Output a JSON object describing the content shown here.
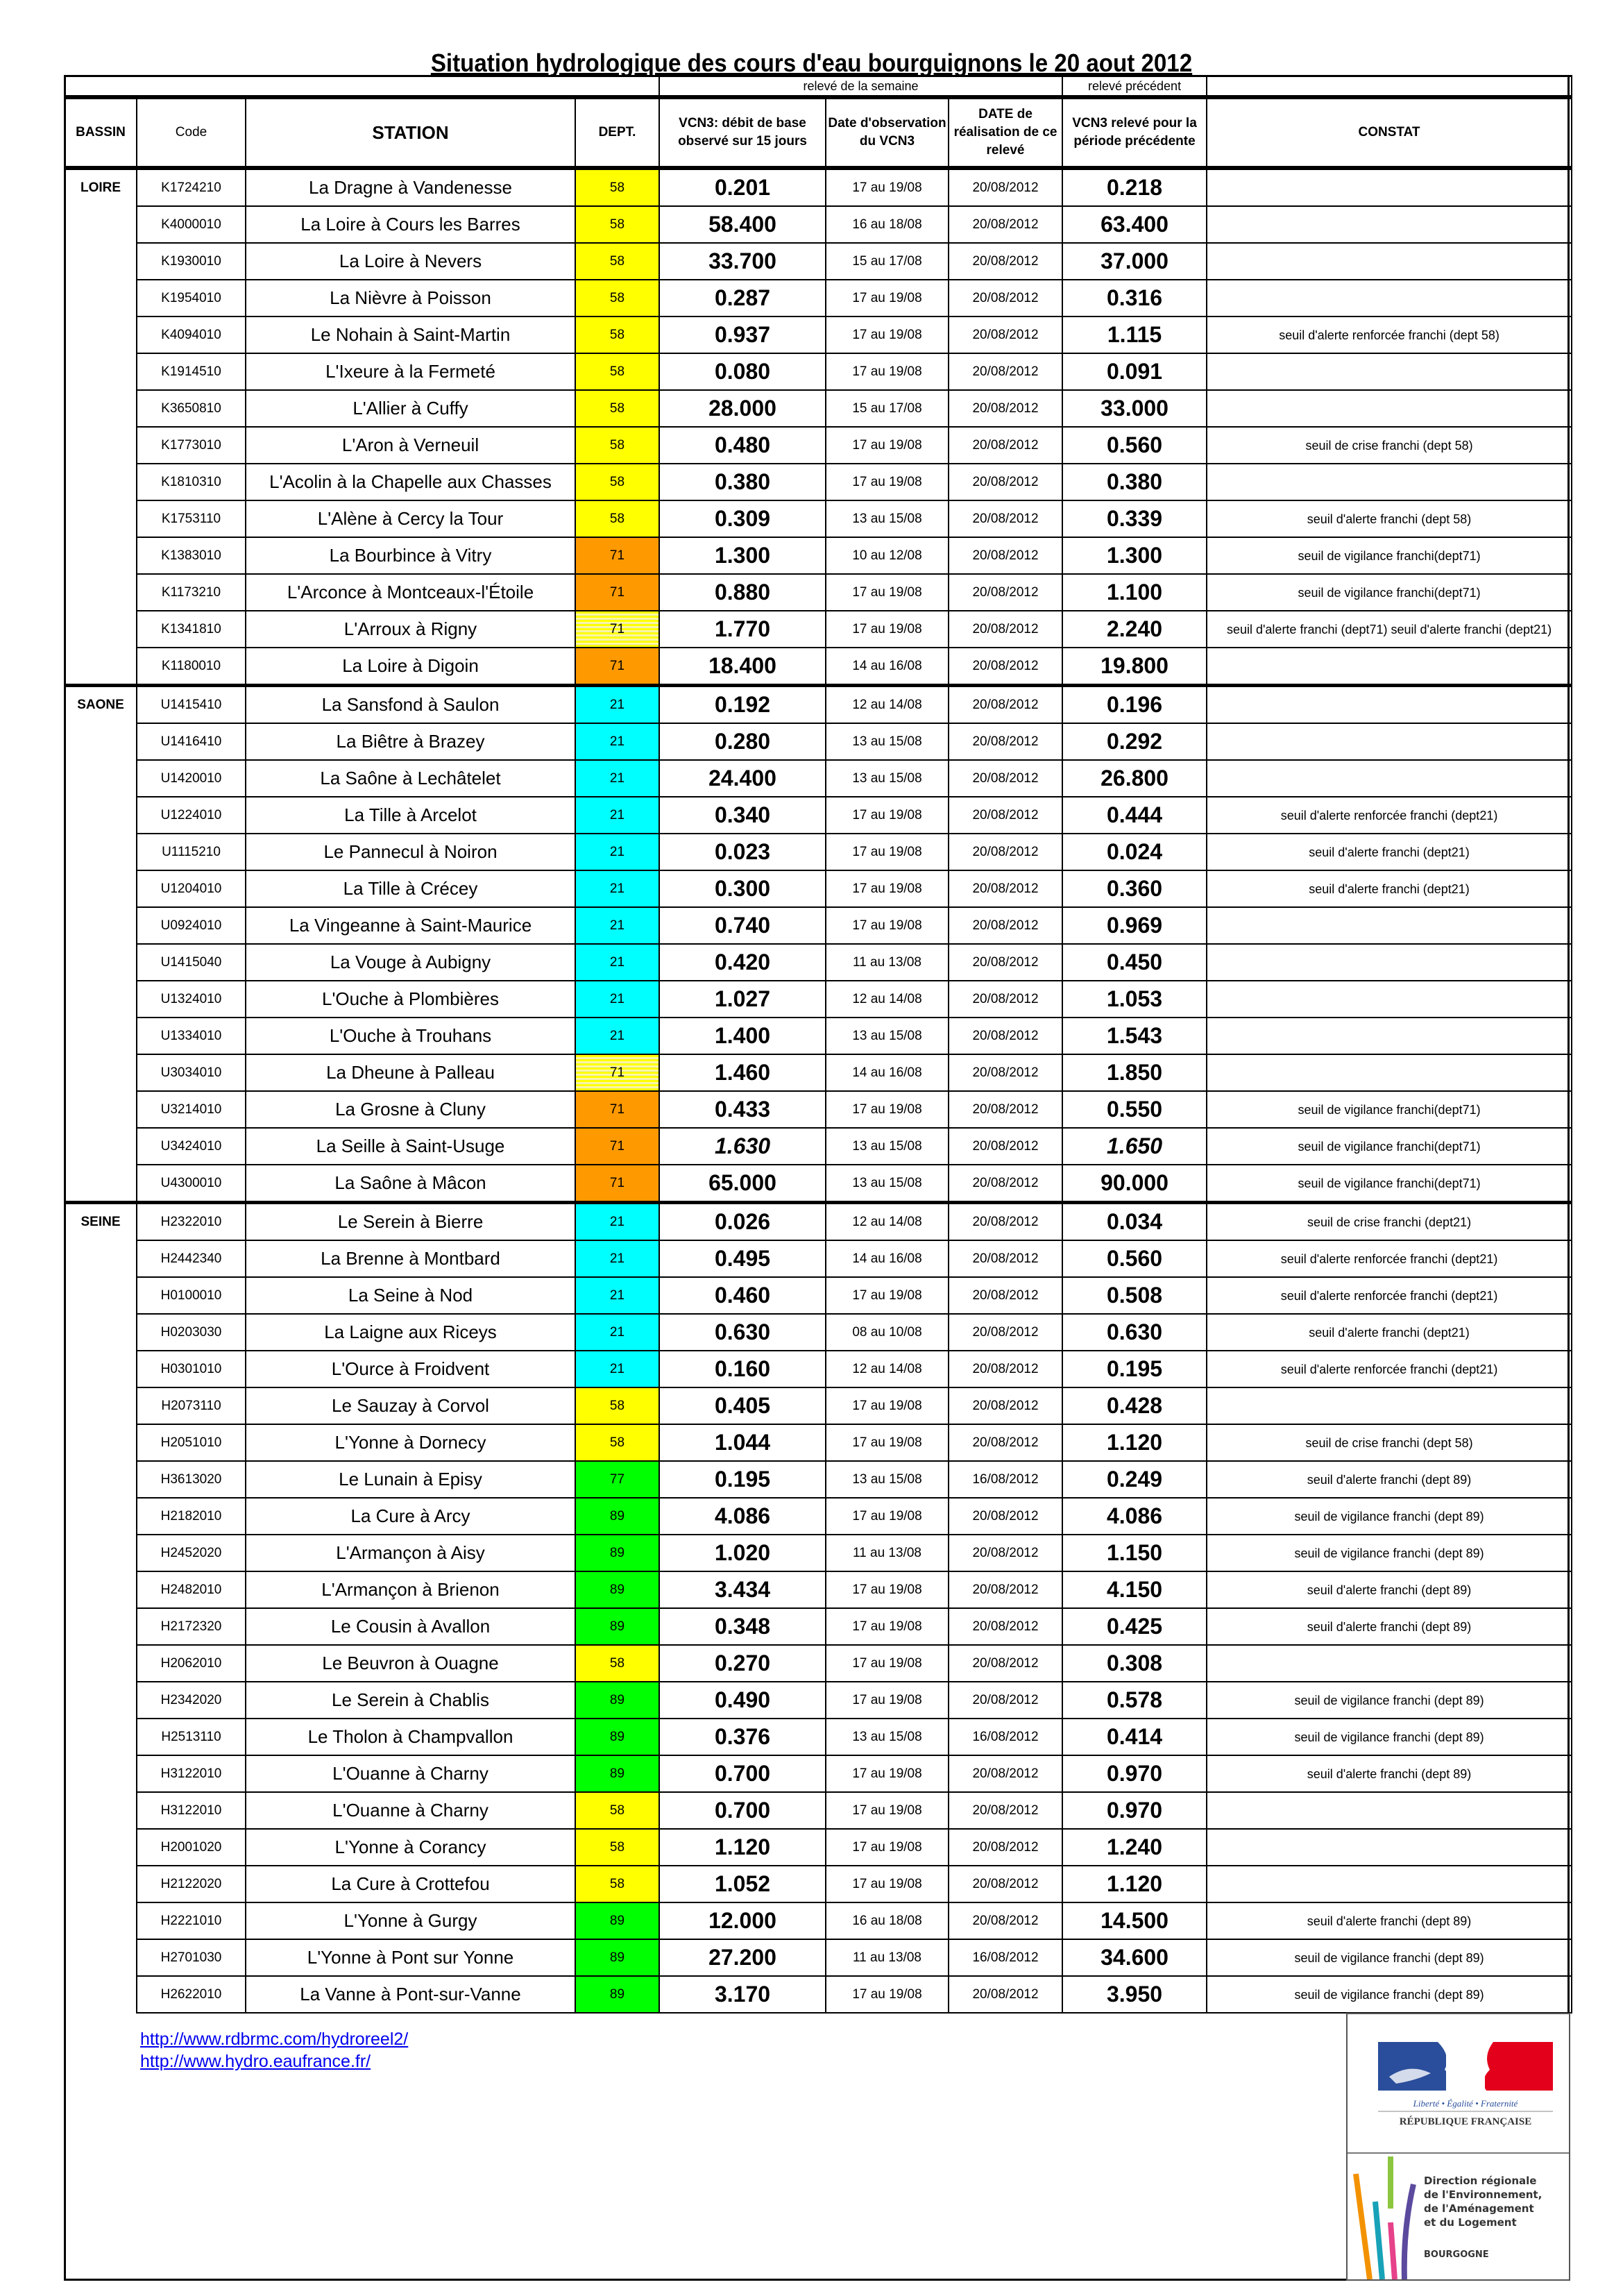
{
  "title": "Situation hydrologique des cours d'eau bourguignons le 20 aout 2012",
  "group_headers": {
    "current": "relevé de la semaine",
    "previous": "relevé précédent"
  },
  "headers": {
    "bassin": "BASSIN",
    "code": "Code",
    "station": "STATION",
    "dept": "DEPT.",
    "vcn3": "VCN3: débit de base observé sur 15 jours",
    "date_obs": "Date d'observation du VCN3",
    "date_real": "DATE de réalisation de ce relevé",
    "vcn3_prev": "VCN3 relevé pour la période précédente",
    "constat": "CONSTAT"
  },
  "dept_colors": {
    "58": "#ffff00",
    "71": "#ff9900",
    "21": "#00ffff",
    "77": "#00ff00",
    "89": "#00ff00",
    "71-striped": "#ffff00"
  },
  "rows": [
    {
      "bassin": "LOIRE",
      "code": "K1724210",
      "station": "La Dragne à Vandenesse",
      "dept": "58",
      "c": "y",
      "vcn3": "0.201",
      "obs": "17 au 19/08",
      "date": "20/08/2012",
      "prev": "0.218",
      "constat": ""
    },
    {
      "code": "K4000010",
      "station": "La Loire à Cours les Barres",
      "dept": "58",
      "c": "y",
      "vcn3": "58.400",
      "obs": "16 au 18/08",
      "date": "20/08/2012",
      "prev": "63.400",
      "constat": ""
    },
    {
      "code": "K1930010",
      "station": "La Loire à Nevers",
      "dept": "58",
      "c": "y",
      "vcn3": "33.700",
      "obs": "15 au 17/08",
      "date": "20/08/2012",
      "prev": "37.000",
      "constat": ""
    },
    {
      "code": "K1954010",
      "station": "La Nièvre à Poisson",
      "dept": "58",
      "c": "y",
      "vcn3": "0.287",
      "obs": "17 au 19/08",
      "date": "20/08/2012",
      "prev": "0.316",
      "constat": ""
    },
    {
      "code": "K4094010",
      "station": "Le Nohain à Saint-Martin",
      "dept": "58",
      "c": "y",
      "vcn3": "0.937",
      "obs": "17 au 19/08",
      "date": "20/08/2012",
      "prev": "1.115",
      "constat": "seuil d'alerte renforcée franchi (dept 58)"
    },
    {
      "code": "K1914510",
      "station": "L'Ixeure à la Fermeté",
      "dept": "58",
      "c": "y",
      "vcn3": "0.080",
      "obs": "17 au 19/08",
      "date": "20/08/2012",
      "prev": "0.091",
      "constat": ""
    },
    {
      "code": "K3650810",
      "station": "L'Allier à Cuffy",
      "dept": "58",
      "c": "y",
      "vcn3": "28.000",
      "obs": "15 au 17/08",
      "date": "20/08/2012",
      "prev": "33.000",
      "constat": ""
    },
    {
      "code": "K1773010",
      "station": "L'Aron à Verneuil",
      "dept": "58",
      "c": "y",
      "vcn3": "0.480",
      "obs": "17 au 19/08",
      "date": "20/08/2012",
      "prev": "0.560",
      "constat": "seuil de crise franchi (dept 58)"
    },
    {
      "code": "K1810310",
      "station": "L'Acolin à la Chapelle aux Chasses",
      "dept": "58",
      "c": "y",
      "vcn3": "0.380",
      "obs": "17 au 19/08",
      "date": "20/08/2012",
      "prev": "0.380",
      "constat": ""
    },
    {
      "code": "K1753110",
      "station": "L'Alène à Cercy la Tour",
      "dept": "58",
      "c": "y",
      "vcn3": "0.309",
      "obs": "13 au 15/08",
      "date": "20/08/2012",
      "prev": "0.339",
      "constat": "seuil d'alerte franchi (dept 58)"
    },
    {
      "code": "K1383010",
      "station": "La Bourbince à Vitry",
      "dept": "71",
      "c": "o",
      "vcn3": "1.300",
      "obs": "10 au 12/08",
      "date": "20/08/2012",
      "prev": "1.300",
      "constat": "seuil de vigilance franchi(dept71)"
    },
    {
      "code": "K1173210",
      "station": "L'Arconce à Montceaux-l'Étoile",
      "dept": "71",
      "c": "o",
      "vcn3": "0.880",
      "obs": "17 au 19/08",
      "date": "20/08/2012",
      "prev": "1.100",
      "constat": "seuil de vigilance franchi(dept71)"
    },
    {
      "code": "K1341810",
      "station": "L'Arroux à Rigny",
      "dept": "71",
      "c": "s",
      "vcn3": "1.770",
      "obs": "17 au 19/08",
      "date": "20/08/2012",
      "prev": "2.240",
      "constat": "seuil d'alerte franchi (dept71)  seuil d'alerte franchi (dept21)"
    },
    {
      "code": "K1180010",
      "station": "La Loire à Digoin",
      "dept": "71",
      "c": "o",
      "vcn3": "18.400",
      "obs": "14 au 16/08",
      "date": "20/08/2012",
      "prev": "19.800",
      "constat": ""
    },
    {
      "bassin": "SAONE",
      "code": "U1415410",
      "station": "La Sansfond à Saulon",
      "dept": "21",
      "c": "c",
      "vcn3": "0.192",
      "obs": "12 au 14/08",
      "date": "20/08/2012",
      "prev": "0.196",
      "constat": ""
    },
    {
      "code": "U1416410",
      "station": "La Biêtre à Brazey",
      "dept": "21",
      "c": "c",
      "vcn3": "0.280",
      "obs": "13 au 15/08",
      "date": "20/08/2012",
      "prev": "0.292",
      "constat": ""
    },
    {
      "code": "U1420010",
      "station": "La Saône à Lechâtelet",
      "dept": "21",
      "c": "c",
      "vcn3": "24.400",
      "obs": "13 au 15/08",
      "date": "20/08/2012",
      "prev": "26.800",
      "constat": ""
    },
    {
      "code": "U1224010",
      "station": "La Tille à Arcelot",
      "dept": "21",
      "c": "c",
      "vcn3": "0.340",
      "obs": "17 au 19/08",
      "date": "20/08/2012",
      "prev": "0.444",
      "constat": "seuil d'alerte renforcée franchi (dept21)"
    },
    {
      "code": "U1115210",
      "station": "Le Pannecul à Noiron",
      "dept": "21",
      "c": "c",
      "vcn3": "0.023",
      "obs": "17 au 19/08",
      "date": "20/08/2012",
      "prev": "0.024",
      "constat": "seuil d'alerte franchi (dept21)"
    },
    {
      "code": "U1204010",
      "station": "La Tille à Crécey",
      "dept": "21",
      "c": "c",
      "vcn3": "0.300",
      "obs": "17 au 19/08",
      "date": "20/08/2012",
      "prev": "0.360",
      "constat": "seuil d'alerte franchi (dept21)"
    },
    {
      "code": "U0924010",
      "station": "La Vingeanne à Saint-Maurice",
      "dept": "21",
      "c": "c",
      "vcn3": "0.740",
      "obs": "17 au 19/08",
      "date": "20/08/2012",
      "prev": "0.969",
      "constat": ""
    },
    {
      "code": "U1415040",
      "station": "La Vouge à Aubigny",
      "dept": "21",
      "c": "c",
      "vcn3": "0.420",
      "obs": "11 au 13/08",
      "date": "20/08/2012",
      "prev": "0.450",
      "constat": ""
    },
    {
      "code": "U1324010",
      "station": "L'Ouche à Plombières",
      "dept": "21",
      "c": "c",
      "vcn3": "1.027",
      "obs": "12 au 14/08",
      "date": "20/08/2012",
      "prev": "1.053",
      "constat": ""
    },
    {
      "code": "U1334010",
      "station": "L'Ouche à Trouhans",
      "dept": "21",
      "c": "c",
      "vcn3": "1.400",
      "obs": "13 au 15/08",
      "date": "20/08/2012",
      "prev": "1.543",
      "constat": ""
    },
    {
      "code": "U3034010",
      "station": "La Dheune à Palleau",
      "dept": "71",
      "c": "s",
      "vcn3": "1.460",
      "obs": "14 au 16/08",
      "date": "20/08/2012",
      "prev": "1.850",
      "constat": ""
    },
    {
      "code": "U3214010",
      "station": "La Grosne à Cluny",
      "dept": "71",
      "c": "o",
      "vcn3": "0.433",
      "obs": "17 au 19/08",
      "date": "20/08/2012",
      "prev": "0.550",
      "constat": "seuil de vigilance franchi(dept71)"
    },
    {
      "code": "U3424010",
      "station": "La Seille à Saint-Usuge",
      "dept": "71",
      "c": "o",
      "italic": true,
      "vcn3": "1.630",
      "obs": "13 au 15/08",
      "date": "20/08/2012",
      "prev": "1.650",
      "constat": "seuil de vigilance franchi(dept71)"
    },
    {
      "code": "U4300010",
      "station": "La Saône à Mâcon",
      "dept": "71",
      "c": "o",
      "vcn3": "65.000",
      "obs": "13 au 15/08",
      "date": "20/08/2012",
      "prev": "90.000",
      "constat": "seuil de vigilance franchi(dept71)"
    },
    {
      "bassin": "SEINE",
      "code": "H2322010",
      "station": "Le Serein à Bierre",
      "dept": "21",
      "c": "c",
      "vcn3": "0.026",
      "obs": "12 au 14/08",
      "date": "20/08/2012",
      "prev": "0.034",
      "constat": "seuil de crise franchi (dept21)"
    },
    {
      "code": "H2442340",
      "station": "La Brenne à Montbard",
      "dept": "21",
      "c": "c",
      "vcn3": "0.495",
      "obs": "14 au 16/08",
      "date": "20/08/2012",
      "prev": "0.560",
      "constat": "seuil d'alerte renforcée franchi (dept21)"
    },
    {
      "code": "H0100010",
      "station": "La Seine à Nod",
      "dept": "21",
      "c": "c",
      "vcn3": "0.460",
      "obs": "17 au 19/08",
      "date": "20/08/2012",
      "prev": "0.508",
      "constat": "seuil d'alerte renforcée franchi (dept21)"
    },
    {
      "code": "H0203030",
      "station": "La Laigne aux Riceys",
      "dept": "21",
      "c": "c",
      "vcn3": "0.630",
      "obs": "08 au 10/08",
      "date": "20/08/2012",
      "prev": "0.630",
      "constat": "seuil d'alerte franchi (dept21)"
    },
    {
      "code": "H0301010",
      "station": "L'Ource à Froidvent",
      "dept": "21",
      "c": "c",
      "vcn3": "0.160",
      "obs": "12 au 14/08",
      "date": "20/08/2012",
      "prev": "0.195",
      "constat": "seuil d'alerte renforcée franchi (dept21)"
    },
    {
      "code": "H2073110",
      "station": "Le Sauzay à Corvol",
      "dept": "58",
      "c": "y",
      "vcn3": "0.405",
      "obs": "17 au 19/08",
      "date": "20/08/2012",
      "prev": "0.428",
      "constat": ""
    },
    {
      "code": "H2051010",
      "station": "L'Yonne à Dornecy",
      "dept": "58",
      "c": "y",
      "vcn3": "1.044",
      "obs": "17 au 19/08",
      "date": "20/08/2012",
      "prev": "1.120",
      "constat": "seuil de crise franchi (dept 58)"
    },
    {
      "code": "H3613020",
      "station": "Le Lunain à Episy",
      "dept": "77",
      "c": "g",
      "vcn3": "0.195",
      "obs": "13 au 15/08",
      "date": "16/08/2012",
      "prev": "0.249",
      "constat": "seuil d'alerte franchi (dept 89)"
    },
    {
      "code": "H2182010",
      "station": "La Cure à Arcy",
      "dept": "89",
      "c": "g",
      "vcn3": "4.086",
      "obs": "17 au 19/08",
      "date": "20/08/2012",
      "prev": "4.086",
      "constat": "seuil de vigilance franchi (dept 89)"
    },
    {
      "code": "H2452020",
      "station": "L'Armançon à Aisy",
      "dept": "89",
      "c": "g",
      "vcn3": "1.020",
      "obs": "11 au 13/08",
      "date": "20/08/2012",
      "prev": "1.150",
      "constat": "seuil de vigilance franchi (dept 89)"
    },
    {
      "code": "H2482010",
      "station": "L'Armançon à Brienon",
      "dept": "89",
      "c": "g",
      "vcn3": "3.434",
      "obs": "17 au 19/08",
      "date": "20/08/2012",
      "prev": "4.150",
      "constat": "seuil d'alerte franchi (dept 89)"
    },
    {
      "code": "H2172320",
      "station": "Le Cousin à Avallon",
      "dept": "89",
      "c": "g",
      "vcn3": "0.348",
      "obs": "17 au 19/08",
      "date": "20/08/2012",
      "prev": "0.425",
      "constat": "seuil d'alerte franchi (dept 89)"
    },
    {
      "code": "H2062010",
      "station": "Le Beuvron à Ouagne",
      "dept": "58",
      "c": "y",
      "vcn3": "0.270",
      "obs": "17 au 19/08",
      "date": "20/08/2012",
      "prev": "0.308",
      "constat": ""
    },
    {
      "code": "H2342020",
      "station": "Le Serein à Chablis",
      "dept": "89",
      "c": "g",
      "vcn3": "0.490",
      "obs": "17 au 19/08",
      "date": "20/08/2012",
      "prev": "0.578",
      "constat": "seuil de vigilance franchi (dept 89)"
    },
    {
      "code": "H2513110",
      "station": "Le Tholon à Champvallon",
      "dept": "89",
      "c": "g",
      "vcn3": "0.376",
      "obs": "13 au 15/08",
      "date": "16/08/2012",
      "prev": "0.414",
      "constat": "seuil de vigilance franchi (dept 89)"
    },
    {
      "code": "H3122010",
      "station": "L'Ouanne à Charny",
      "dept": "89",
      "c": "g",
      "vcn3": "0.700",
      "obs": "17 au 19/08",
      "date": "20/08/2012",
      "prev": "0.970",
      "constat": "seuil d'alerte franchi (dept 89)"
    },
    {
      "code": "H3122010",
      "station": "L'Ouanne à Charny",
      "dept": "58",
      "c": "y",
      "vcn3": "0.700",
      "obs": "17 au 19/08",
      "date": "20/08/2012",
      "prev": "0.970",
      "constat": ""
    },
    {
      "code": "H2001020",
      "station": "L'Yonne à Corancy",
      "dept": "58",
      "c": "y",
      "vcn3": "1.120",
      "obs": "17 au 19/08",
      "date": "20/08/2012",
      "prev": "1.240",
      "constat": ""
    },
    {
      "code": "H2122020",
      "station": "La Cure à Crottefou",
      "dept": "58",
      "c": "y",
      "vcn3": "1.052",
      "obs": "17 au 19/08",
      "date": "20/08/2012",
      "prev": "1.120",
      "constat": ""
    },
    {
      "code": "H2221010",
      "station": "L'Yonne à Gurgy",
      "dept": "89",
      "c": "g",
      "vcn3": "12.000",
      "obs": "16 au 18/08",
      "date": "20/08/2012",
      "prev": "14.500",
      "constat": "seuil d'alerte franchi (dept 89)"
    },
    {
      "code": "H2701030",
      "station": "L'Yonne à Pont sur Yonne",
      "dept": "89",
      "c": "g",
      "vcn3": "27.200",
      "obs": "11 au 13/08",
      "date": "16/08/2012",
      "prev": "34.600",
      "constat": "seuil de vigilance franchi (dept 89)"
    },
    {
      "code": "H2622010",
      "station": "La Vanne à Pont-sur-Vanne",
      "dept": "89",
      "c": "g",
      "vcn3": "3.170",
      "obs": "17 au 19/08",
      "date": "20/08/2012",
      "prev": "3.950",
      "constat": "seuil de vigilance franchi (dept 89)"
    }
  ],
  "links": [
    "http://www.rdbrmc.com/hydroreel2/",
    "http://www.hydro.eaufrance.fr/"
  ],
  "logo": {
    "motto": "Liberté • Égalité • Fraternité",
    "republic": "RÉPUBLIQUE FRANÇAISE",
    "dreal_lines": [
      "Direction régionale",
      "de l'Environnement,",
      "de l'Aménagement",
      "et du Logement"
    ],
    "region": "BOURGOGNE",
    "colors": {
      "blue": "#2a4e9b",
      "red": "#e3001b"
    }
  }
}
